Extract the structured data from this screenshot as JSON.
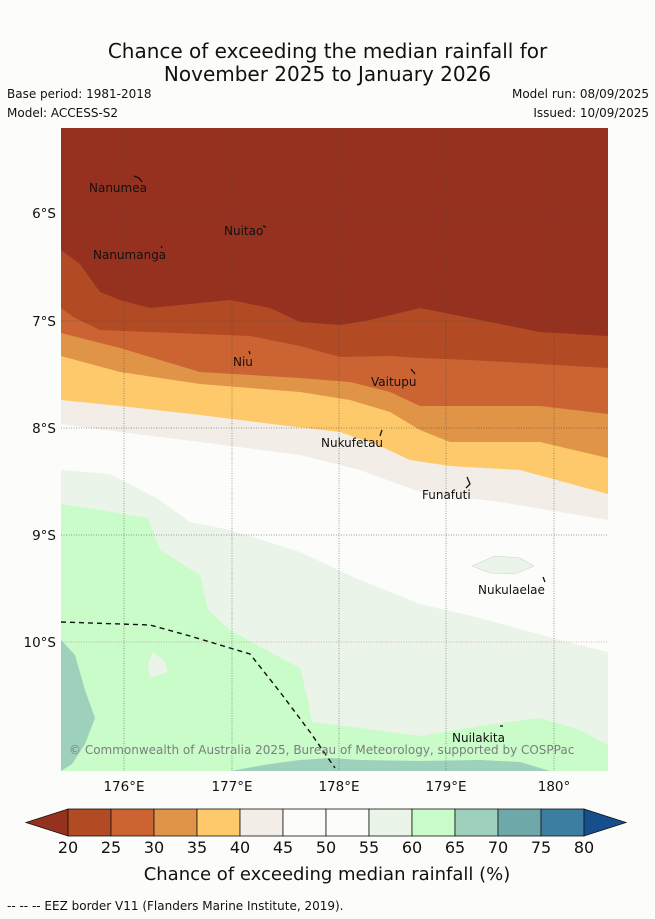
{
  "title_line1": "Chance of exceeding the median rainfall for",
  "title_line2": "November 2025 to January 2026",
  "base_period": "Base period: 1981-2018",
  "model": "Model: ACCESS-S2",
  "model_run": "Model run: 08/09/2025",
  "issued": "Issued: 10/09/2025",
  "map": {
    "lon_ticks": [
      "176°E",
      "177°E",
      "178°E",
      "179°E",
      "180°"
    ],
    "lat_ticks": [
      "6°S",
      "7°S",
      "8°S",
      "9°S",
      "10°S"
    ],
    "places": [
      {
        "name": "Nanumea"
      },
      {
        "name": "Nuitao"
      },
      {
        "name": "Nanumanga"
      },
      {
        "name": "Niu"
      },
      {
        "name": "Vaitupu"
      },
      {
        "name": "Nukufetau"
      },
      {
        "name": "Funafuti"
      },
      {
        "name": "Nukulaelae"
      },
      {
        "name": "Nuilakita"
      }
    ],
    "copyright": "© Commonwealth of Australia 2025, Bureau of Meteorology, supported by COSPPac"
  },
  "colorbar": {
    "labels": [
      "20",
      "25",
      "30",
      "35",
      "40",
      "45",
      "50",
      "55",
      "60",
      "65",
      "70",
      "75",
      "80"
    ],
    "title": "Chance of exceeding median rainfall (%)",
    "colors": [
      "#97311f",
      "#b24a24",
      "#cb6432",
      "#e09447",
      "#fec96a",
      "#f2ede7",
      "#fcfdfb",
      "#fcfdfb",
      "#eaf4e8",
      "#c9fcc9",
      "#9ed1bb",
      "#6fa8a8",
      "#3b7ea1",
      "#174e8c"
    ]
  },
  "footnote": "-- -- -- EEZ border V11 (Flanders Marine Institute, 2019)."
}
